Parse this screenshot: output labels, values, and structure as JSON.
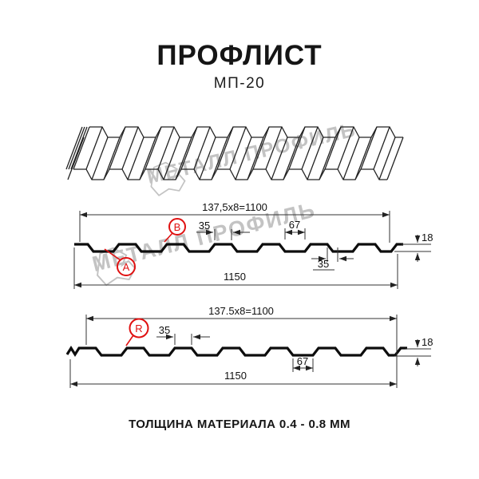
{
  "header": {
    "title": "ПРОФЛИСТ",
    "subtitle": "МП-20"
  },
  "footer": {
    "material_thickness": "ТОЛЩИНА МАТЕРИАЛА 0.4 - 0.8 ММ"
  },
  "watermark": {
    "text": "МЕТАЛЛ ПРОФИЛЬ"
  },
  "colors": {
    "accent_red": "#e01111",
    "line_black": "#0d0d0d",
    "watermark_gray": "#c3c3c3"
  },
  "section_top": {
    "module_width_label": "137,5x8=1100",
    "total_width_label": "1150",
    "rib_top_width_label": "35",
    "valley_width_label": "67",
    "rib_bottom_width_label": "35",
    "height_label": "18",
    "point_a_label": "A",
    "point_b_label": "B"
  },
  "section_bottom": {
    "module_width_label": "137.5x8=1100",
    "total_width_label": "1150",
    "rib_top_width_label": "35",
    "valley_width_label": "67",
    "height_label": "18",
    "point_r_label": "R"
  }
}
